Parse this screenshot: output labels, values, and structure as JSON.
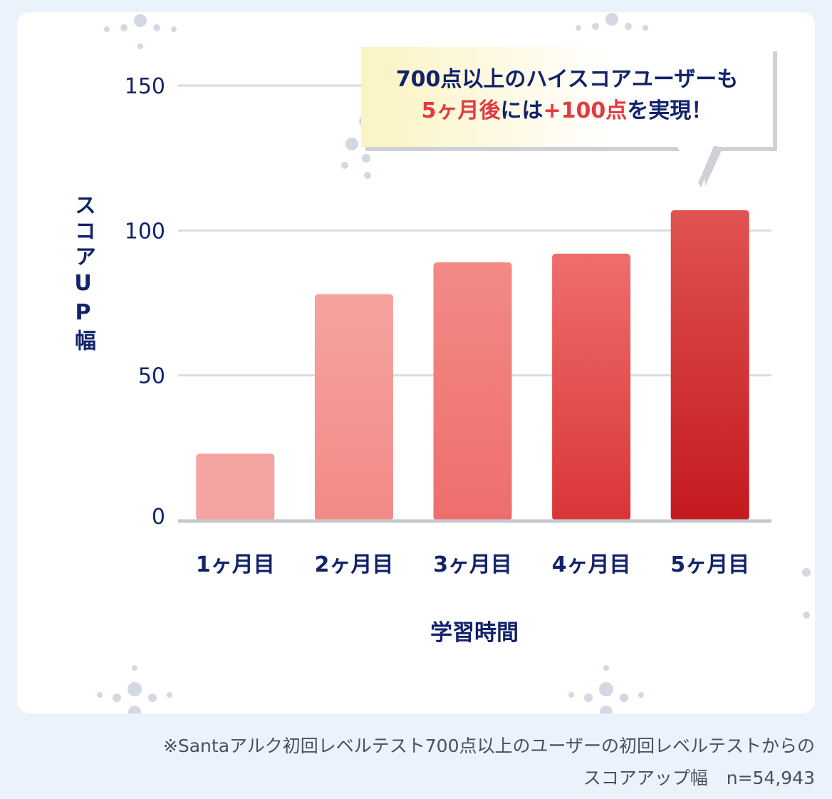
{
  "chart_data": {
    "type": "bar",
    "categories": [
      "1ヶ月目",
      "2ヶ月目",
      "3ヶ月目",
      "4ヶ月目",
      "5ヶ月目"
    ],
    "values": [
      23,
      78,
      89,
      92,
      107
    ],
    "ylabel": "スコアUP幅",
    "xlabel": "学習時間",
    "ylim": [
      0,
      150
    ],
    "yticks": [
      0,
      50,
      100,
      150
    ],
    "grid": true,
    "bar_colors_top": [
      "#f5a3a0",
      "#f5a3a0",
      "#f28a86",
      "#ee6e6c",
      "#e05351"
    ],
    "bar_colors_bottom": [
      "#f5a3a0",
      "#f28a86",
      "#ee6e6c",
      "#d93537",
      "#c41a1e"
    ]
  },
  "callout": {
    "line1": "700点以上のハイスコアユーザーも",
    "line2_a": "5ヶ月後",
    "line2_b": "には",
    "line2_c": "+100点",
    "line2_d": "を実現！"
  },
  "footnote": {
    "line1": "※Santaアルク初回レベルテスト700点以上のユーザーの初回レベルテストからの",
    "line2": "スコアアップ幅",
    "n": "n=54,943"
  },
  "colors": {
    "navy": "#12236b",
    "accent_red": "#e23a3e",
    "card_bg": "#ffffff",
    "page_bg": "#eaf2fc"
  }
}
